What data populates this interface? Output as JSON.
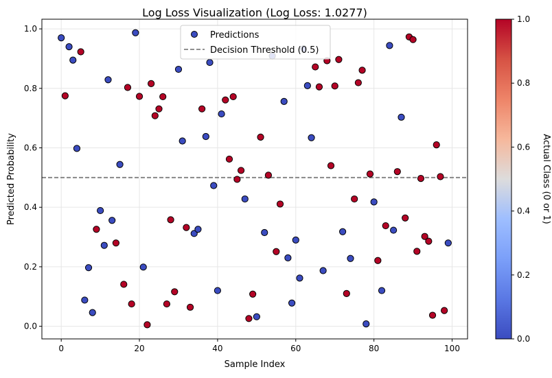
{
  "chart_data": {
    "type": "scatter",
    "title": "Log Loss Visualization (Log Loss: 1.0277)",
    "xlabel": "Sample Index",
    "ylabel": "Predicted Probability",
    "xlim": [
      -4.95,
      103.95
    ],
    "ylim": [
      -0.0425,
      1.0325
    ],
    "xticks": [
      0,
      20,
      40,
      60,
      80,
      100
    ],
    "yticks": [
      0.0,
      0.2,
      0.4,
      0.6,
      0.8,
      1.0
    ],
    "xtick_labels": [
      "0",
      "20",
      "40",
      "60",
      "80",
      "100"
    ],
    "ytick_labels": [
      "0.0",
      "0.2",
      "0.4",
      "0.6",
      "0.8",
      "1.0"
    ],
    "grid": true,
    "legend_position": "upper-center",
    "legend": [
      {
        "label": "Predictions",
        "kind": "marker"
      },
      {
        "label": "Decision Threshold (0.5)",
        "kind": "dashed-line"
      }
    ],
    "threshold": 0.5,
    "threshold_color": "#808080",
    "colorbar": {
      "label": "Actual Class (0 or 1)",
      "range": [
        0,
        1
      ],
      "ticks": [
        0.0,
        0.2,
        0.4,
        0.6,
        0.8,
        1.0
      ],
      "tick_labels": [
        "0.0",
        "0.2",
        "0.4",
        "0.6",
        "0.8",
        "1.0"
      ],
      "colormap": "coolwarm",
      "color_low": "#3b4cc0",
      "color_high": "#b40426"
    },
    "series": [
      {
        "x": [
          0,
          1,
          2,
          3,
          4,
          5,
          6,
          7,
          8,
          9,
          10,
          11,
          12,
          13,
          14,
          15,
          16,
          17,
          18,
          19,
          20,
          21,
          22,
          23,
          24,
          25,
          26,
          27,
          28,
          29,
          30,
          31,
          32,
          33,
          34,
          35,
          36,
          37,
          38,
          39,
          40,
          41,
          42,
          43,
          44,
          45,
          46,
          47,
          48,
          49,
          50,
          51,
          52,
          53,
          54,
          55,
          56,
          57,
          58,
          59,
          60,
          61,
          62,
          63,
          64,
          65,
          66,
          67,
          68,
          69,
          70,
          71,
          72,
          73,
          74,
          75,
          76,
          77,
          78,
          79,
          80,
          81,
          82,
          83,
          84,
          85,
          86,
          87,
          88,
          89,
          90,
          91,
          92,
          93,
          94,
          95,
          96,
          97,
          98,
          99
        ],
        "y": [
          0.97,
          0.775,
          0.94,
          0.895,
          0.598,
          0.923,
          0.088,
          0.197,
          0.046,
          0.326,
          0.389,
          0.272,
          0.829,
          0.356,
          0.28,
          0.544,
          0.141,
          0.803,
          0.075,
          0.987,
          0.773,
          0.199,
          0.005,
          0.816,
          0.708,
          0.731,
          0.772,
          0.075,
          0.358,
          0.116,
          0.864,
          0.623,
          0.332,
          0.064,
          0.312,
          0.326,
          0.731,
          0.638,
          0.887,
          0.473,
          0.12,
          0.714,
          0.761,
          0.562,
          0.772,
          0.494,
          0.524,
          0.428,
          0.026,
          0.108,
          0.032,
          0.636,
          0.315,
          0.508,
          0.909,
          0.251,
          0.411,
          0.756,
          0.23,
          0.078,
          0.29,
          0.162,
          0.933,
          0.809,
          0.634,
          0.872,
          0.805,
          0.187,
          0.893,
          0.54,
          0.808,
          0.897,
          0.318,
          0.11,
          0.228,
          0.428,
          0.819,
          0.861,
          0.008,
          0.512,
          0.418,
          0.221,
          0.12,
          0.338,
          0.944,
          0.323,
          0.52,
          0.703,
          0.364,
          0.973,
          0.964,
          0.252,
          0.497,
          0.302,
          0.286,
          0.037,
          0.61,
          0.503,
          0.053,
          0.28
        ],
        "class": [
          0,
          1,
          0,
          0,
          0,
          1,
          0,
          0,
          0,
          1,
          0,
          0,
          0,
          0,
          1,
          0,
          1,
          1,
          1,
          0,
          1,
          0,
          1,
          1,
          1,
          1,
          1,
          1,
          1,
          1,
          0,
          0,
          1,
          1,
          0,
          0,
          1,
          0,
          0,
          0,
          0,
          0,
          1,
          1,
          1,
          1,
          1,
          0,
          1,
          1,
          0,
          1,
          0,
          1,
          0,
          1,
          1,
          0,
          0,
          0,
          0,
          0,
          0,
          0,
          0,
          1,
          1,
          0,
          1,
          1,
          1,
          1,
          0,
          1,
          0,
          1,
          1,
          1,
          0,
          1,
          0,
          1,
          0,
          1,
          0,
          0,
          1,
          0,
          1,
          1,
          1,
          1,
          1,
          1,
          1,
          1,
          1,
          1,
          1,
          0
        ]
      }
    ]
  }
}
